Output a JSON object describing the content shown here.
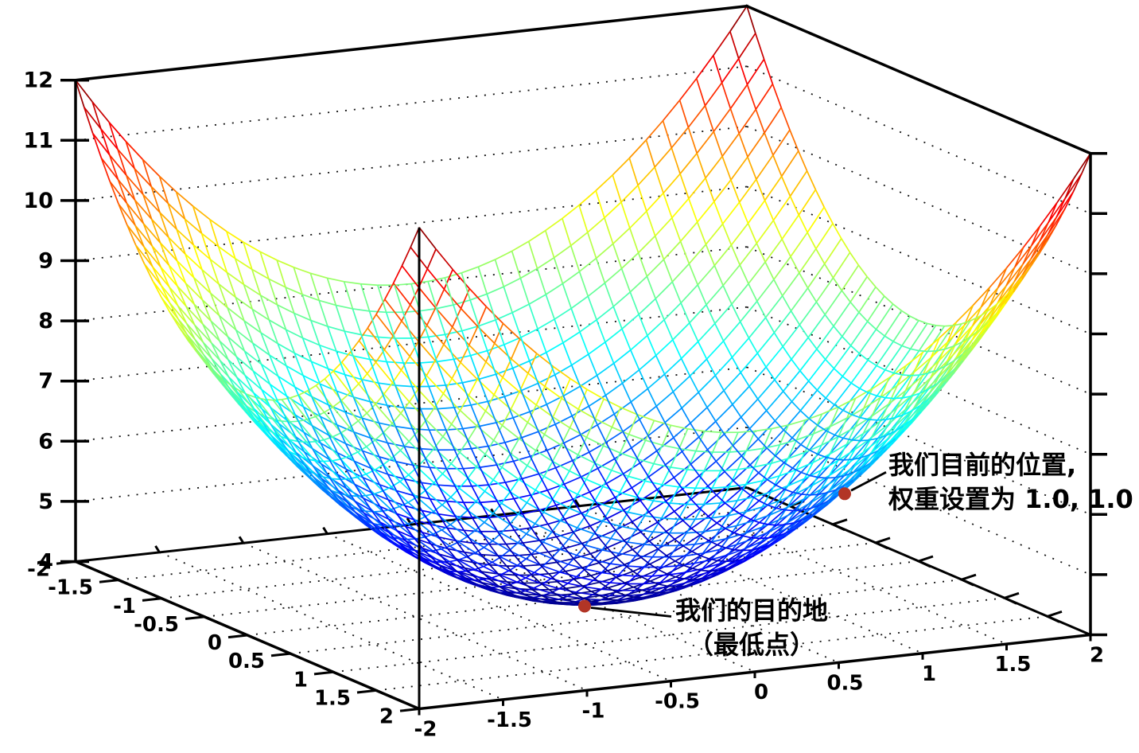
{
  "chart_data": {
    "type": "3d-surface-mesh",
    "title": "",
    "surface": {
      "function": "z = x^2 + y^2 + 4",
      "coefficients": {
        "x2": 1,
        "y2": 1,
        "const": 4
      },
      "x_min": -2,
      "x_max": 2,
      "y_min": -2,
      "y_max": 2,
      "grid_lines": 41
    },
    "colormap": "jet",
    "axes": {
      "x": {
        "range": [
          -2,
          2
        ],
        "ticks": [
          -2,
          -1.5,
          -1,
          -0.5,
          0,
          0.5,
          1,
          1.5,
          2
        ],
        "labels": [
          "-2",
          "-1.5",
          "-1",
          "-0.5",
          "0",
          "0.5",
          "1",
          "1.5",
          "2"
        ]
      },
      "y": {
        "range": [
          -2,
          2
        ],
        "ticks": [
          -2,
          -1.5,
          -1,
          -0.5,
          0,
          0.5,
          1,
          1.5,
          2
        ],
        "labels": [
          "-2",
          "-1.5",
          "-1",
          "-0.5",
          "0",
          "0.5",
          "1",
          "1.5",
          "2"
        ]
      },
      "z": {
        "range": [
          4,
          12
        ],
        "ticks": [
          4,
          5,
          6,
          7,
          8,
          9,
          10,
          11,
          12
        ],
        "labels": [
          "4",
          "5",
          "6",
          "7",
          "8",
          "9",
          "10",
          "11",
          "12"
        ]
      }
    },
    "grid": {
      "style": "dotted",
      "floor_lines": [
        -1.5,
        -1,
        -0.5,
        0,
        0.5,
        1,
        1.5
      ],
      "wall_z_lines": [
        5,
        6,
        7,
        8,
        9,
        10,
        11
      ],
      "back_left_edge_ticks": [
        -1.5,
        -1,
        -0.5,
        0,
        0.5,
        1,
        1.5
      ],
      "back_right_edge_ticks": [
        -1.5,
        -1,
        -0.5,
        0,
        0.5,
        1,
        1.5
      ]
    },
    "annotations": [
      {
        "name": "destination",
        "point": {
          "x": 0,
          "y": 0,
          "z": 4
        },
        "text_lines": [
          "我们的目的地",
          "（最低点）"
        ],
        "marker_color": "#B23526"
      },
      {
        "name": "current-position",
        "point": {
          "x": 1,
          "y": 1,
          "z": 6
        },
        "text_lines": [
          "我们目前的位置,",
          "权重设置为 1.0, 1.0"
        ],
        "marker_color": "#B23526"
      }
    ],
    "colors": {
      "background": "#FFFFFF",
      "axis": "#000000",
      "grid_dots": "#111111",
      "annotation_text": "#000000",
      "leader_line": "#000000"
    }
  }
}
